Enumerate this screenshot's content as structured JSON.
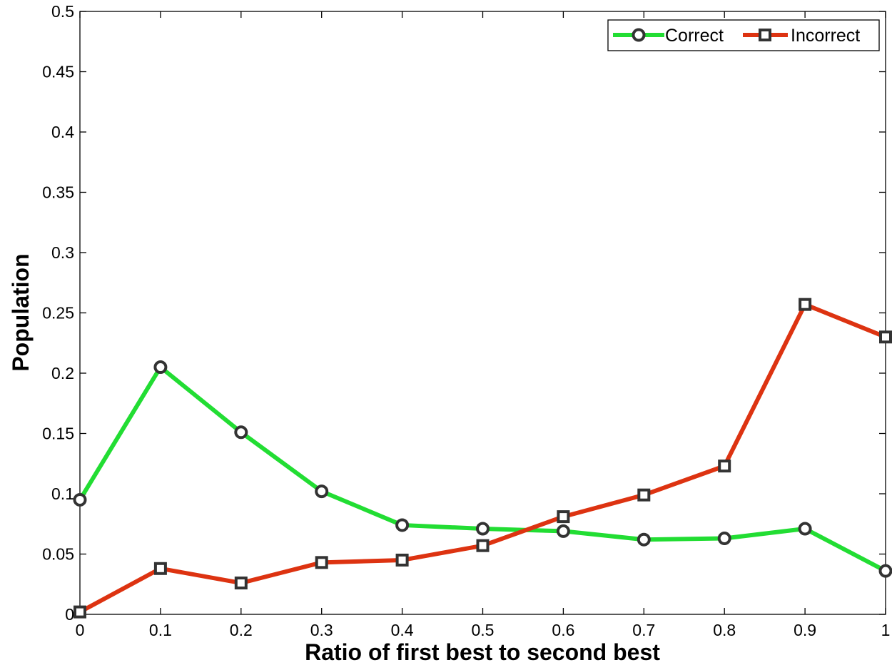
{
  "chart_data": {
    "type": "line",
    "title": "",
    "xlabel": "Ratio of first best to second best",
    "ylabel": "Population",
    "xlim": [
      0,
      1
    ],
    "ylim": [
      0,
      0.5
    ],
    "x_ticks": [
      0,
      0.1,
      0.2,
      0.3,
      0.4,
      0.5,
      0.6,
      0.7,
      0.8,
      0.9,
      1
    ],
    "x_tick_labels": [
      "0",
      "0.1",
      "0.2",
      "0.3",
      "0.4",
      "0.5",
      "0.6",
      "0.7",
      "0.8",
      "0.9",
      "1"
    ],
    "y_ticks": [
      0,
      0.05,
      0.1,
      0.15,
      0.2,
      0.25,
      0.3,
      0.35,
      0.4,
      0.45,
      0.5
    ],
    "y_tick_labels": [
      "0",
      "0.05",
      "0.1",
      "0.15",
      "0.2",
      "0.25",
      "0.3",
      "0.35",
      "0.4",
      "0.45",
      "0.5"
    ],
    "grid": false,
    "legend_position": "top-right",
    "x": [
      0,
      0.1,
      0.2,
      0.3,
      0.4,
      0.5,
      0.6,
      0.7,
      0.8,
      0.9,
      1
    ],
    "series": [
      {
        "name": "Correct",
        "color": "#22dd33",
        "marker": "circle",
        "values": [
          0.095,
          0.205,
          0.151,
          0.102,
          0.074,
          0.071,
          0.069,
          0.062,
          0.063,
          0.071,
          0.036
        ]
      },
      {
        "name": "Incorrect",
        "color": "#dd3311",
        "marker": "square",
        "values": [
          0.002,
          0.038,
          0.026,
          0.043,
          0.045,
          0.057,
          0.081,
          0.099,
          0.123,
          0.257,
          0.23
        ]
      }
    ]
  }
}
